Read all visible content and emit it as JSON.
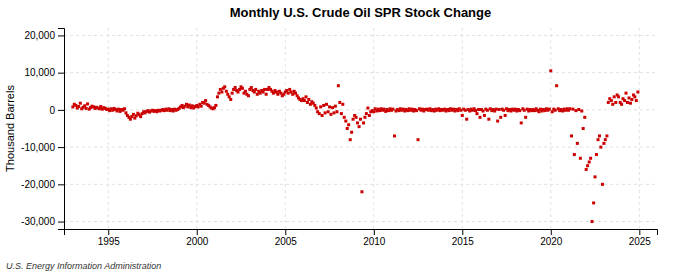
{
  "chart_data": {
    "type": "scatter",
    "title": "Monthly U.S. Crude Oil SPR Stock Change",
    "ylabel": "Thousand Barrels",
    "annotations": [
      "U.S. Energy Information Administration"
    ],
    "color": "#cc0000",
    "marker": "square",
    "grid": true,
    "xlim": [
      1992.5,
      2026.0
    ],
    "ylim": [
      -32000,
      22000
    ],
    "xticks": [
      1995,
      2000,
      2005,
      2010,
      2015,
      2020,
      2025
    ],
    "yticks": [
      {
        "value": -30000,
        "label": "-30,000"
      },
      {
        "value": -20000,
        "label": "-20,000"
      },
      {
        "value": -10000,
        "label": "-10,000"
      },
      0,
      {
        "value": 10000,
        "label": "10,000"
      },
      {
        "value": 20000,
        "label": "20,000"
      }
    ],
    "x": [
      1993.0,
      1993.08,
      1993.17,
      1993.25,
      1993.33,
      1993.42,
      1993.5,
      1993.58,
      1993.67,
      1993.75,
      1993.83,
      1993.92,
      1994.0,
      1994.08,
      1994.17,
      1994.25,
      1994.33,
      1994.42,
      1994.5,
      1994.58,
      1994.67,
      1994.75,
      1994.83,
      1994.92,
      1995.0,
      1995.08,
      1995.17,
      1995.25,
      1995.33,
      1995.42,
      1995.5,
      1995.58,
      1995.67,
      1995.75,
      1995.83,
      1995.92,
      1996.0,
      1996.08,
      1996.17,
      1996.25,
      1996.33,
      1996.42,
      1996.5,
      1996.58,
      1996.67,
      1996.75,
      1996.83,
      1996.92,
      1997.0,
      1997.08,
      1997.17,
      1997.25,
      1997.33,
      1997.42,
      1997.5,
      1997.58,
      1997.67,
      1997.75,
      1997.83,
      1997.92,
      1998.0,
      1998.08,
      1998.17,
      1998.25,
      1998.33,
      1998.42,
      1998.5,
      1998.58,
      1998.67,
      1998.75,
      1998.83,
      1998.92,
      1999.0,
      1999.08,
      1999.17,
      1999.25,
      1999.33,
      1999.42,
      1999.5,
      1999.58,
      1999.67,
      1999.75,
      1999.83,
      1999.92,
      2000.0,
      2000.08,
      2000.17,
      2000.25,
      2000.33,
      2000.42,
      2000.5,
      2000.58,
      2000.67,
      2000.75,
      2000.83,
      2000.92,
      2001.0,
      2001.08,
      2001.17,
      2001.25,
      2001.33,
      2001.42,
      2001.5,
      2001.58,
      2001.67,
      2001.75,
      2001.83,
      2001.92,
      2002.0,
      2002.08,
      2002.17,
      2002.25,
      2002.33,
      2002.42,
      2002.5,
      2002.58,
      2002.67,
      2002.75,
      2002.83,
      2002.92,
      2003.0,
      2003.08,
      2003.17,
      2003.25,
      2003.33,
      2003.42,
      2003.5,
      2003.58,
      2003.67,
      2003.75,
      2003.83,
      2003.92,
      2004.0,
      2004.08,
      2004.17,
      2004.25,
      2004.33,
      2004.42,
      2004.5,
      2004.58,
      2004.67,
      2004.75,
      2004.83,
      2004.92,
      2005.0,
      2005.08,
      2005.17,
      2005.25,
      2005.33,
      2005.42,
      2005.5,
      2005.58,
      2005.67,
      2005.75,
      2005.83,
      2005.92,
      2006.0,
      2006.08,
      2006.17,
      2006.25,
      2006.33,
      2006.42,
      2006.5,
      2006.58,
      2006.67,
      2006.75,
      2006.83,
      2006.92,
      2007.0,
      2007.08,
      2007.17,
      2007.25,
      2007.33,
      2007.42,
      2007.5,
      2007.58,
      2007.67,
      2007.75,
      2007.83,
      2007.92,
      2008.0,
      2008.08,
      2008.17,
      2008.25,
      2008.33,
      2008.42,
      2008.5,
      2008.58,
      2008.67,
      2008.75,
      2008.83,
      2008.92,
      2009.0,
      2009.08,
      2009.17,
      2009.25,
      2009.33,
      2009.42,
      2009.5,
      2009.58,
      2009.67,
      2009.75,
      2009.83,
      2009.92,
      2010.0,
      2010.08,
      2010.17,
      2010.25,
      2010.33,
      2010.42,
      2010.5,
      2010.58,
      2010.67,
      2010.75,
      2010.83,
      2010.92,
      2011.0,
      2011.08,
      2011.17,
      2011.25,
      2011.33,
      2011.42,
      2011.5,
      2011.58,
      2011.67,
      2011.75,
      2011.83,
      2011.92,
      2012.0,
      2012.08,
      2012.17,
      2012.25,
      2012.33,
      2012.42,
      2012.5,
      2012.58,
      2012.67,
      2012.75,
      2012.83,
      2012.92,
      2013.0,
      2013.08,
      2013.17,
      2013.25,
      2013.33,
      2013.42,
      2013.5,
      2013.58,
      2013.67,
      2013.75,
      2013.83,
      2013.92,
      2014.0,
      2014.08,
      2014.17,
      2014.25,
      2014.33,
      2014.42,
      2014.5,
      2014.58,
      2014.67,
      2014.75,
      2014.83,
      2014.92,
      2015.0,
      2015.08,
      2015.17,
      2015.25,
      2015.33,
      2015.42,
      2015.5,
      2015.58,
      2015.67,
      2015.75,
      2015.83,
      2015.92,
      2016.0,
      2016.08,
      2016.17,
      2016.25,
      2016.33,
      2016.42,
      2016.5,
      2016.58,
      2016.67,
      2016.75,
      2016.83,
      2016.92,
      2017.0,
      2017.08,
      2017.17,
      2017.25,
      2017.33,
      2017.42,
      2017.5,
      2017.58,
      2017.67,
      2017.75,
      2017.83,
      2017.92,
      2018.0,
      2018.08,
      2018.17,
      2018.25,
      2018.33,
      2018.42,
      2018.5,
      2018.58,
      2018.67,
      2018.75,
      2018.83,
      2018.92,
      2019.0,
      2019.08,
      2019.17,
      2019.25,
      2019.33,
      2019.42,
      2019.5,
      2019.58,
      2019.67,
      2019.75,
      2019.83,
      2019.92,
      2020.0,
      2020.08,
      2020.17,
      2020.25,
      2020.33,
      2020.42,
      2020.5,
      2020.58,
      2020.67,
      2020.75,
      2020.83,
      2020.92,
      2021.0,
      2021.08,
      2021.17,
      2021.25,
      2021.33,
      2021.42,
      2021.5,
      2021.58,
      2021.67,
      2021.75,
      2021.83,
      2021.92,
      2022.0,
      2022.08,
      2022.17,
      2022.25,
      2022.33,
      2022.42,
      2022.5,
      2022.58,
      2022.67,
      2022.75,
      2022.83,
      2022.92,
      2023.0,
      2023.08,
      2023.17,
      2023.25,
      2023.33,
      2023.42,
      2023.5,
      2023.58,
      2023.67,
      2023.75,
      2023.83,
      2023.92,
      2024.0,
      2024.08,
      2024.17,
      2024.25,
      2024.33,
      2024.42,
      2024.5,
      2024.58,
      2024.67,
      2024.75,
      2024.83,
      2024.92
    ],
    "values": [
      800,
      1500,
      1200,
      500,
      900,
      1800,
      300,
      700,
      1100,
      400,
      1600,
      200,
      600,
      1000,
      800,
      400,
      700,
      500,
      300,
      900,
      200,
      600,
      400,
      100,
      200,
      -200,
      300,
      -100,
      400,
      100,
      -300,
      200,
      -400,
      100,
      -100,
      300,
      -800,
      -1500,
      -2000,
      -2500,
      -1800,
      -1200,
      -2200,
      -1600,
      -900,
      -1300,
      -1800,
      -1000,
      -500,
      -800,
      -400,
      -200,
      -600,
      -300,
      -100,
      -400,
      -200,
      -500,
      -100,
      -300,
      -100,
      100,
      -200,
      200,
      -100,
      300,
      -200,
      100,
      -300,
      200,
      -100,
      100,
      400,
      800,
      1200,
      600,
      1000,
      1500,
      800,
      1300,
      600,
      1100,
      500,
      900,
      1200,
      800,
      1500,
      1000,
      2000,
      1800,
      2500,
      1500,
      1200,
      800,
      500,
      300,
      600,
      1200,
      3500,
      4500,
      5500,
      4800,
      5800,
      6200,
      5000,
      4200,
      3500,
      2800,
      4500,
      5500,
      6000,
      5200,
      4800,
      5500,
      6200,
      5800,
      4500,
      5000,
      4200,
      3800,
      5500,
      6000,
      5200,
      4800,
      5500,
      4200,
      5000,
      4500,
      5200,
      4800,
      5500,
      4200,
      5500,
      6000,
      5500,
      5000,
      4500,
      5200,
      4800,
      4200,
      5000,
      4500,
      3800,
      4200,
      4800,
      5200,
      4500,
      5500,
      4800,
      4200,
      5000,
      4500,
      3800,
      3200,
      2800,
      2500,
      3000,
      2500,
      3500,
      2000,
      2800,
      1500,
      2200,
      1800,
      1200,
      500,
      -500,
      -1000,
      800,
      -1500,
      1200,
      -800,
      1500,
      -500,
      800,
      -1200,
      600,
      -800,
      1000,
      -500,
      6500,
      2000,
      -1000,
      1500,
      -2000,
      -3000,
      -5000,
      -4000,
      -8000,
      -6000,
      -2500,
      -1500,
      -2000,
      -3500,
      -4500,
      -2500,
      -22000,
      -3500,
      -2000,
      -1000,
      500,
      -1500,
      -500,
      -200,
      -500,
      300,
      -300,
      200,
      -200,
      300,
      -100,
      200,
      -400,
      100,
      -200,
      300,
      -100,
      200,
      -7000,
      -300,
      100,
      -200,
      300,
      -100,
      200,
      -300,
      100,
      -200,
      300,
      -100,
      200,
      -300,
      100,
      -200,
      -8000,
      300,
      -100,
      200,
      -300,
      100,
      200,
      -100,
      300,
      -200,
      100,
      -300,
      200,
      -100,
      300,
      -200,
      100,
      -100,
      200,
      -300,
      100,
      -200,
      300,
      -100,
      200,
      -300,
      100,
      -200,
      300,
      -100,
      -1500,
      200,
      -100,
      -2500,
      100,
      -300,
      200,
      -100,
      300,
      -200,
      -1000,
      100,
      -2000,
      100,
      -300,
      -1500,
      200,
      -100,
      -2500,
      300,
      -200,
      100,
      -300,
      200,
      -3000,
      100,
      -2000,
      200,
      -100,
      -1500,
      300,
      -200,
      100,
      -300,
      200,
      -100,
      200,
      -300,
      100,
      -200,
      -3500,
      300,
      -100,
      -2000,
      200,
      -300,
      100,
      -200,
      100,
      -200,
      300,
      -100,
      -500,
      200,
      -300,
      100,
      -200,
      300,
      -100,
      200,
      10500,
      -500,
      200,
      -100,
      6500,
      300,
      -200,
      100,
      -300,
      200,
      -100,
      300,
      -100,
      300,
      -7000,
      200,
      -12000,
      -200,
      -9000,
      100,
      -13000,
      -300,
      -5000,
      -2000,
      -16000,
      -15000,
      -14000,
      -13000,
      -30000,
      -25000,
      -18000,
      -12000,
      -8000,
      -7000,
      -10000,
      -20000,
      -9000,
      -8000,
      -7000,
      2000,
      3000,
      2500,
      1500,
      3500,
      2000,
      4000,
      3500,
      2000,
      1500,
      3000,
      2500,
      4500,
      2000,
      3200,
      1800,
      2800,
      4000,
      3500,
      2500,
      4800
    ]
  }
}
